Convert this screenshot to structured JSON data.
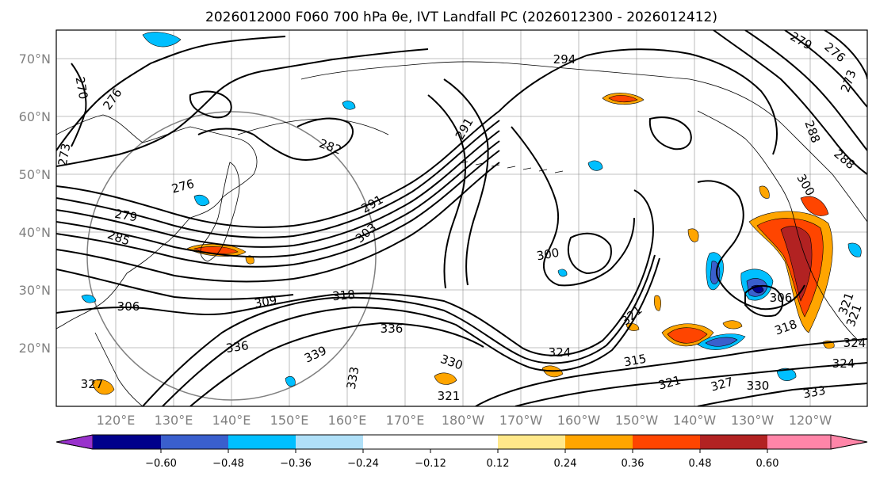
{
  "title": "2026012000 F060 700 hPa θe, IVT Landfall PC (2026012300 - 2026012412)",
  "lat_labels": [
    "70°N",
    "60°N",
    "50°N",
    "40°N",
    "30°N",
    "20°N"
  ],
  "lon_labels": [
    "120°E",
    "130°E",
    "140°E",
    "150°E",
    "160°E",
    "170°E",
    "180°W",
    "170°W",
    "160°W",
    "150°W",
    "140°W",
    "130°W",
    "120°W"
  ],
  "colorbar": {
    "ticks": [
      "−0.60",
      "−0.48",
      "−0.36",
      "−0.24",
      "−0.12",
      "0.12",
      "0.24",
      "0.36",
      "0.48",
      "0.60"
    ],
    "colors": [
      "#9932cc",
      "#00008b",
      "#3a5fcd",
      "#00bfff",
      "#b0e0f8",
      "#ffffff",
      "#ffe88a",
      "#ffa500",
      "#ff4500",
      "#b22222",
      "#ff85a8"
    ]
  },
  "contour_labels": [
    "294",
    "270",
    "276",
    "273",
    "282",
    "291",
    "276",
    "279",
    "285",
    "291",
    "303",
    "300",
    "306",
    "309",
    "318",
    "336",
    "336",
    "339",
    "330",
    "333",
    "321",
    "324",
    "321",
    "315",
    "321",
    "327",
    "330",
    "333",
    "306",
    "318",
    "321",
    "324",
    "288",
    "288",
    "279",
    "276",
    "273",
    "300",
    "321",
    "324",
    "327"
  ]
}
